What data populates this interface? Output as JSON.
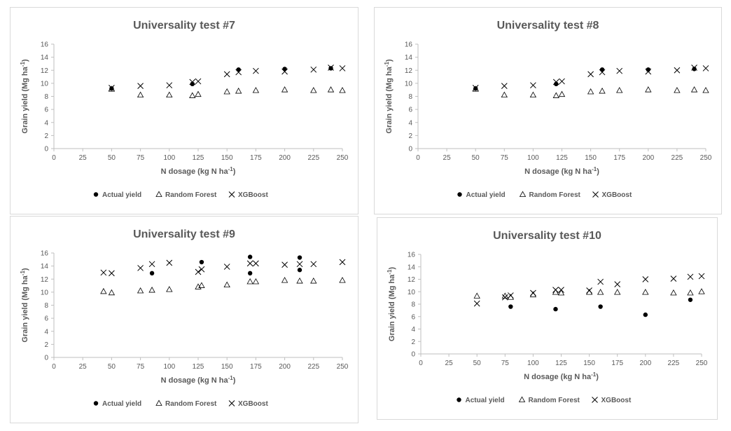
{
  "colors": {
    "marker": "#000000",
    "text": "#595959",
    "axis": "#bfbfbf",
    "border": "#d9d9d9"
  },
  "chart_data": [
    {
      "type": "scatter",
      "title": "Universality test #7",
      "xlabel": "N dosage (kg N ha",
      "xlabel_sup": "-1",
      "xlabel_end": ")",
      "ylabel": "Grain yield (Mg ha",
      "ylabel_sup": "-1",
      "ylabel_end": ")",
      "xlim": [
        0,
        250
      ],
      "ylim": [
        0,
        16
      ],
      "xticks": [
        "0",
        "25",
        "50",
        "75",
        "100",
        "125",
        "150",
        "175",
        "200",
        "225",
        "250"
      ],
      "yticks": [
        "0",
        "2",
        "4",
        "6",
        "8",
        "10",
        "12",
        "14",
        "16"
      ],
      "grid": false,
      "legend_position": "bottom",
      "series": [
        {
          "name": "Actual yield",
          "marker": "circle",
          "points": [
            [
              50,
              9.2
            ],
            [
              120,
              9.9
            ],
            [
              160,
              12.1
            ],
            [
              200,
              12.2
            ],
            [
              240,
              12.3
            ]
          ]
        },
        {
          "name": "Random Forest",
          "marker": "triangle",
          "points": [
            [
              50,
              9.1
            ],
            [
              75,
              8.2
            ],
            [
              100,
              8.2
            ],
            [
              120,
              8.1
            ],
            [
              125,
              8.3
            ],
            [
              150,
              8.7
            ],
            [
              160,
              8.8
            ],
            [
              175,
              8.9
            ],
            [
              200,
              9.0
            ],
            [
              225,
              8.9
            ],
            [
              240,
              9.0
            ],
            [
              250,
              8.9
            ]
          ]
        },
        {
          "name": "XGBoost",
          "marker": "x",
          "points": [
            [
              50,
              9.3
            ],
            [
              75,
              9.6
            ],
            [
              100,
              9.7
            ],
            [
              120,
              10.2
            ],
            [
              125,
              10.3
            ],
            [
              150,
              11.4
            ],
            [
              160,
              11.7
            ],
            [
              175,
              11.9
            ],
            [
              200,
              11.8
            ],
            [
              225,
              12.1
            ],
            [
              240,
              12.4
            ],
            [
              250,
              12.3
            ]
          ]
        }
      ]
    },
    {
      "type": "scatter",
      "title": "Universality test #8",
      "xlabel": "N dosage (kg N ha",
      "xlabel_sup": "-1",
      "xlabel_end": ")",
      "ylabel": "Grain yield (Mg ha",
      "ylabel_sup": "-1",
      "ylabel_end": ")",
      "xlim": [
        0,
        250
      ],
      "ylim": [
        0,
        16
      ],
      "xticks": [
        "0",
        "25",
        "50",
        "75",
        "100",
        "125",
        "150",
        "175",
        "200",
        "225",
        "250"
      ],
      "yticks": [
        "0",
        "2",
        "4",
        "6",
        "8",
        "10",
        "12",
        "14",
        "16"
      ],
      "grid": false,
      "legend_position": "bottom",
      "series": [
        {
          "name": "Actual yield",
          "marker": "circle",
          "points": [
            [
              50,
              9.2
            ],
            [
              120,
              9.9
            ],
            [
              160,
              12.1
            ],
            [
              200,
              12.1
            ],
            [
              240,
              12.2
            ]
          ]
        },
        {
          "name": "Random Forest",
          "marker": "triangle",
          "points": [
            [
              50,
              9.1
            ],
            [
              75,
              8.2
            ],
            [
              100,
              8.2
            ],
            [
              120,
              8.1
            ],
            [
              125,
              8.3
            ],
            [
              150,
              8.7
            ],
            [
              160,
              8.8
            ],
            [
              175,
              8.9
            ],
            [
              200,
              9.0
            ],
            [
              225,
              8.9
            ],
            [
              240,
              9.0
            ],
            [
              250,
              8.9
            ]
          ]
        },
        {
          "name": "XGBoost",
          "marker": "x",
          "points": [
            [
              50,
              9.3
            ],
            [
              75,
              9.6
            ],
            [
              100,
              9.7
            ],
            [
              120,
              10.2
            ],
            [
              125,
              10.3
            ],
            [
              150,
              11.4
            ],
            [
              160,
              11.7
            ],
            [
              175,
              11.9
            ],
            [
              200,
              11.8
            ],
            [
              225,
              12.0
            ],
            [
              240,
              12.4
            ],
            [
              250,
              12.3
            ]
          ]
        }
      ]
    },
    {
      "type": "scatter",
      "title": "Universality test #9",
      "xlabel": "N dosage (kg N ha",
      "xlabel_sup": "-1",
      "xlabel_end": ")",
      "ylabel": "Grain yield (Mg ha",
      "ylabel_sup": "-1",
      "ylabel_end": ")",
      "xlim": [
        0,
        250
      ],
      "ylim": [
        0,
        16
      ],
      "xticks": [
        "0",
        "25",
        "50",
        "75",
        "100",
        "125",
        "150",
        "175",
        "200",
        "225",
        "250"
      ],
      "yticks": [
        "0",
        "2",
        "4",
        "6",
        "8",
        "10",
        "12",
        "14",
        "16"
      ],
      "grid": false,
      "legend_position": "bottom",
      "series": [
        {
          "name": "Actual yield",
          "marker": "circle",
          "points": [
            [
              85,
              12.9
            ],
            [
              128,
              14.6
            ],
            [
              170,
              15.4
            ],
            [
              170,
              12.9
            ],
            [
              213,
              15.3
            ],
            [
              213,
              13.4
            ]
          ]
        },
        {
          "name": "Random Forest",
          "marker": "triangle",
          "points": [
            [
              43,
              10.1
            ],
            [
              50,
              9.9
            ],
            [
              75,
              10.2
            ],
            [
              85,
              10.3
            ],
            [
              100,
              10.4
            ],
            [
              125,
              10.8
            ],
            [
              128,
              11.0
            ],
            [
              150,
              11.1
            ],
            [
              170,
              11.6
            ],
            [
              175,
              11.6
            ],
            [
              200,
              11.8
            ],
            [
              213,
              11.7
            ],
            [
              225,
              11.7
            ],
            [
              250,
              11.8
            ]
          ]
        },
        {
          "name": "XGBoost",
          "marker": "x",
          "points": [
            [
              43,
              13.0
            ],
            [
              50,
              12.9
            ],
            [
              75,
              13.7
            ],
            [
              85,
              14.3
            ],
            [
              100,
              14.5
            ],
            [
              125,
              13.1
            ],
            [
              128,
              13.5
            ],
            [
              150,
              13.9
            ],
            [
              170,
              14.4
            ],
            [
              175,
              14.4
            ],
            [
              200,
              14.2
            ],
            [
              213,
              14.3
            ],
            [
              225,
              14.3
            ],
            [
              250,
              14.6
            ]
          ]
        }
      ]
    },
    {
      "type": "scatter",
      "title": "Universality test #10",
      "xlabel": "N dosage (kg N ha",
      "xlabel_sup": "-1",
      "xlabel_end": ")",
      "ylabel": "Grain yield (Mg ha",
      "ylabel_sup": "-1",
      "ylabel_end": ")",
      "xlim": [
        0,
        250
      ],
      "ylim": [
        0,
        16
      ],
      "xticks": [
        "0",
        "25",
        "50",
        "75",
        "100",
        "125",
        "150",
        "175",
        "200",
        "225",
        "250"
      ],
      "yticks": [
        "0",
        "2",
        "4",
        "6",
        "8",
        "10",
        "12",
        "14",
        "16"
      ],
      "grid": false,
      "legend_position": "bottom",
      "series": [
        {
          "name": "Actual yield",
          "marker": "circle",
          "points": [
            [
              80,
              7.6
            ],
            [
              120,
              7.2
            ],
            [
              160,
              7.6
            ],
            [
              200,
              6.3
            ],
            [
              240,
              8.7
            ]
          ]
        },
        {
          "name": "Random Forest",
          "marker": "triangle",
          "points": [
            [
              50,
              9.3
            ],
            [
              75,
              9.3
            ],
            [
              80,
              9.1
            ],
            [
              100,
              9.5
            ],
            [
              120,
              9.9
            ],
            [
              125,
              9.8
            ],
            [
              150,
              9.9
            ],
            [
              160,
              9.9
            ],
            [
              175,
              9.9
            ],
            [
              200,
              9.9
            ],
            [
              225,
              9.8
            ],
            [
              240,
              9.8
            ],
            [
              250,
              10.0
            ]
          ]
        },
        {
          "name": "XGBoost",
          "marker": "x",
          "points": [
            [
              50,
              8.1
            ],
            [
              75,
              9.1
            ],
            [
              80,
              9.4
            ],
            [
              100,
              9.8
            ],
            [
              120,
              10.3
            ],
            [
              125,
              10.3
            ],
            [
              150,
              10.2
            ],
            [
              160,
              11.6
            ],
            [
              175,
              11.2
            ],
            [
              200,
              12.0
            ],
            [
              225,
              12.1
            ],
            [
              240,
              12.4
            ],
            [
              250,
              12.5
            ]
          ]
        }
      ]
    }
  ]
}
